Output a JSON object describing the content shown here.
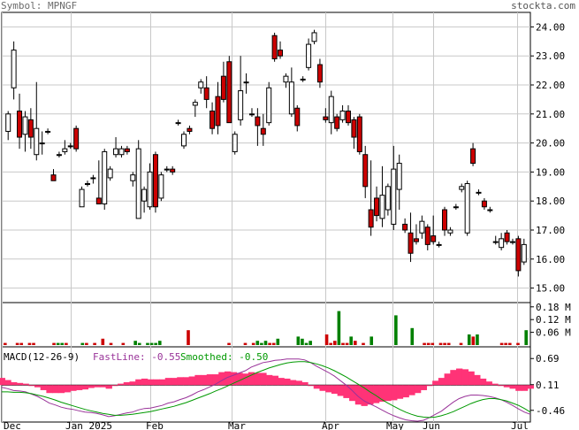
{
  "header": {
    "symbol_label": "Symbol: MPNGF",
    "site": "stockta.com"
  },
  "colors": {
    "up_candle": "#ffffff",
    "down_candle": "#cc0000",
    "candle_outline": "#000000",
    "grid": "#c8c8c8",
    "volume_up": "#008000",
    "volume_down": "#cc0000",
    "macd_hist": "#ff3377",
    "fast_line": "#993399",
    "smoothed_line": "#009900"
  },
  "macd_legend": {
    "label": "MACD(12-26-9)",
    "fast_text": "FastLine: -0.55",
    "smoothed_text": "Smoothed: -0.50"
  },
  "chart_data": [
    {
      "type": "candlestick",
      "panel": "price",
      "y_ticks": [
        "24.00",
        "23.00",
        "22.00",
        "21.00",
        "20.00",
        "19.00",
        "18.00",
        "17.00",
        "16.00",
        "15.00"
      ],
      "ylim": [
        14.5,
        24.5
      ],
      "x_labels": [
        "Dec",
        "Jan 2025",
        "Feb",
        "Mar",
        "Apr",
        "May",
        "Jun",
        "Jul"
      ],
      "grid": true,
      "candles": [
        {
          "o": 20.4,
          "h": 21.1,
          "l": 20.1,
          "c": 21.0
        },
        {
          "o": 21.9,
          "h": 23.5,
          "l": 21.5,
          "c": 23.2
        },
        {
          "o": 21.1,
          "h": 21.7,
          "l": 19.8,
          "c": 20.2
        },
        {
          "o": 20.3,
          "h": 21.1,
          "l": 19.7,
          "c": 20.9
        },
        {
          "o": 20.8,
          "h": 21.2,
          "l": 19.8,
          "c": 20.2
        },
        {
          "o": 19.6,
          "h": 22.1,
          "l": 19.4,
          "c": 20.5
        },
        {
          "o": 20.0,
          "h": 20.4,
          "l": 19.6,
          "c": 20.0
        },
        {
          "o": 20.4,
          "h": 20.5,
          "l": 20.3,
          "c": 20.4
        },
        {
          "o": 18.9,
          "h": 19.1,
          "l": 18.7,
          "c": 18.7
        },
        {
          "o": 19.6,
          "h": 19.7,
          "l": 19.5,
          "c": 19.6
        },
        {
          "o": 19.7,
          "h": 20.1,
          "l": 19.6,
          "c": 19.8
        },
        {
          "o": 19.9,
          "h": 20.0,
          "l": 19.8,
          "c": 19.9
        },
        {
          "o": 20.5,
          "h": 20.6,
          "l": 19.7,
          "c": 19.8
        },
        {
          "o": 17.8,
          "h": 18.5,
          "l": 17.8,
          "c": 18.4
        },
        {
          "o": 18.6,
          "h": 18.7,
          "l": 18.5,
          "c": 18.6
        },
        {
          "o": 18.8,
          "h": 18.9,
          "l": 18.6,
          "c": 18.8
        },
        {
          "o": 18.1,
          "h": 19.4,
          "l": 17.9,
          "c": 17.9
        },
        {
          "o": 17.9,
          "h": 19.8,
          "l": 17.7,
          "c": 19.7
        },
        {
          "o": 18.8,
          "h": 19.2,
          "l": 18.7,
          "c": 19.1
        },
        {
          "o": 19.6,
          "h": 20.2,
          "l": 19.5,
          "c": 19.8
        },
        {
          "o": 19.6,
          "h": 19.9,
          "l": 19.5,
          "c": 19.8
        },
        {
          "o": 19.8,
          "h": 19.9,
          "l": 19.6,
          "c": 19.7
        },
        {
          "o": 18.7,
          "h": 19.0,
          "l": 18.5,
          "c": 18.9
        },
        {
          "o": 17.4,
          "h": 20.1,
          "l": 17.4,
          "c": 19.8
        },
        {
          "o": 18.0,
          "h": 18.5,
          "l": 17.6,
          "c": 18.4
        },
        {
          "o": 17.8,
          "h": 19.3,
          "l": 17.7,
          "c": 19.0
        },
        {
          "o": 19.6,
          "h": 19.7,
          "l": 17.6,
          "c": 17.8
        },
        {
          "o": 18.1,
          "h": 19.0,
          "l": 18.0,
          "c": 18.9
        },
        {
          "o": 19.1,
          "h": 19.2,
          "l": 19.0,
          "c": 19.1
        },
        {
          "o": 19.1,
          "h": 19.2,
          "l": 18.9,
          "c": 19.0
        },
        {
          "o": 20.7,
          "h": 20.8,
          "l": 20.6,
          "c": 20.7
        },
        {
          "o": 19.9,
          "h": 20.4,
          "l": 19.8,
          "c": 20.3
        },
        {
          "o": 20.5,
          "h": 20.6,
          "l": 20.3,
          "c": 20.4
        },
        {
          "o": 21.3,
          "h": 21.5,
          "l": 20.9,
          "c": 21.4
        },
        {
          "o": 21.9,
          "h": 22.2,
          "l": 21.7,
          "c": 22.1
        },
        {
          "o": 21.9,
          "h": 22.3,
          "l": 21.2,
          "c": 21.5
        },
        {
          "o": 21.1,
          "h": 21.4,
          "l": 20.3,
          "c": 20.5
        },
        {
          "o": 21.6,
          "h": 22.1,
          "l": 20.3,
          "c": 20.6
        },
        {
          "o": 22.3,
          "h": 22.8,
          "l": 21.4,
          "c": 21.5
        },
        {
          "o": 22.8,
          "h": 23.0,
          "l": 20.7,
          "c": 20.7
        },
        {
          "o": 19.7,
          "h": 20.4,
          "l": 19.6,
          "c": 20.3
        },
        {
          "o": 20.8,
          "h": 23.0,
          "l": 20.6,
          "c": 21.8
        },
        {
          "o": 22.1,
          "h": 22.4,
          "l": 21.7,
          "c": 22.1
        },
        {
          "o": 21.0,
          "h": 21.2,
          "l": 20.9,
          "c": 21.0
        },
        {
          "o": 20.9,
          "h": 21.2,
          "l": 19.9,
          "c": 20.6
        },
        {
          "o": 20.5,
          "h": 21.0,
          "l": 19.9,
          "c": 20.3
        },
        {
          "o": 20.7,
          "h": 22.1,
          "l": 20.6,
          "c": 21.9
        },
        {
          "o": 23.7,
          "h": 23.8,
          "l": 22.8,
          "c": 22.9
        },
        {
          "o": 23.2,
          "h": 23.5,
          "l": 22.9,
          "c": 23.0
        },
        {
          "o": 22.1,
          "h": 22.4,
          "l": 21.9,
          "c": 22.3
        },
        {
          "o": 21.0,
          "h": 22.6,
          "l": 20.9,
          "c": 22.1
        },
        {
          "o": 21.2,
          "h": 21.3,
          "l": 20.4,
          "c": 20.6
        },
        {
          "o": 22.2,
          "h": 22.3,
          "l": 22.1,
          "c": 22.2
        },
        {
          "o": 22.6,
          "h": 23.6,
          "l": 22.5,
          "c": 23.4
        },
        {
          "o": 23.5,
          "h": 23.9,
          "l": 23.4,
          "c": 23.8
        },
        {
          "o": 22.7,
          "h": 22.9,
          "l": 21.9,
          "c": 22.1
        },
        {
          "o": 20.9,
          "h": 21.2,
          "l": 20.7,
          "c": 20.8
        },
        {
          "o": 20.7,
          "h": 21.8,
          "l": 20.3,
          "c": 21.6
        },
        {
          "o": 20.9,
          "h": 21.0,
          "l": 20.4,
          "c": 20.5
        },
        {
          "o": 20.8,
          "h": 21.3,
          "l": 20.7,
          "c": 21.1
        },
        {
          "o": 21.1,
          "h": 21.3,
          "l": 20.6,
          "c": 20.7
        },
        {
          "o": 20.8,
          "h": 20.9,
          "l": 19.8,
          "c": 20.2
        },
        {
          "o": 20.9,
          "h": 21.0,
          "l": 19.6,
          "c": 19.7
        },
        {
          "o": 19.6,
          "h": 19.9,
          "l": 18.1,
          "c": 18.5
        },
        {
          "o": 17.7,
          "h": 19.4,
          "l": 16.8,
          "c": 17.1
        },
        {
          "o": 18.1,
          "h": 18.5,
          "l": 17.3,
          "c": 17.5
        },
        {
          "o": 17.4,
          "h": 19.2,
          "l": 17.1,
          "c": 18.2
        },
        {
          "o": 17.7,
          "h": 18.6,
          "l": 17.5,
          "c": 18.5
        },
        {
          "o": 17.2,
          "h": 19.9,
          "l": 17.0,
          "c": 19.1
        },
        {
          "o": 18.4,
          "h": 19.6,
          "l": 17.7,
          "c": 19.3
        },
        {
          "o": 17.2,
          "h": 17.4,
          "l": 16.9,
          "c": 17.0
        },
        {
          "o": 16.9,
          "h": 17.6,
          "l": 15.9,
          "c": 16.2
        },
        {
          "o": 16.7,
          "h": 17.2,
          "l": 16.5,
          "c": 16.6
        },
        {
          "o": 16.9,
          "h": 17.5,
          "l": 16.7,
          "c": 17.3
        },
        {
          "o": 17.1,
          "h": 17.2,
          "l": 16.3,
          "c": 16.5
        },
        {
          "o": 16.8,
          "h": 17.5,
          "l": 16.5,
          "c": 16.6
        },
        {
          "o": 16.5,
          "h": 16.6,
          "l": 16.4,
          "c": 16.5
        },
        {
          "o": 17.7,
          "h": 17.8,
          "l": 16.8,
          "c": 17.0
        },
        {
          "o": 16.9,
          "h": 17.1,
          "l": 16.8,
          "c": 17.0
        },
        {
          "o": 17.8,
          "h": 17.9,
          "l": 17.7,
          "c": 17.8
        },
        {
          "o": 18.4,
          "h": 18.6,
          "l": 18.3,
          "c": 18.5
        },
        {
          "o": 16.9,
          "h": 18.7,
          "l": 16.8,
          "c": 18.6
        },
        {
          "o": 19.8,
          "h": 20.0,
          "l": 19.2,
          "c": 19.3
        },
        {
          "o": 18.3,
          "h": 18.4,
          "l": 18.2,
          "c": 18.3
        },
        {
          "o": 18.0,
          "h": 18.1,
          "l": 17.7,
          "c": 17.8
        },
        {
          "o": 17.7,
          "h": 17.8,
          "l": 17.6,
          "c": 17.7
        },
        {
          "o": 16.6,
          "h": 16.8,
          "l": 16.5,
          "c": 16.6
        },
        {
          "o": 16.4,
          "h": 16.9,
          "l": 16.3,
          "c": 16.7
        },
        {
          "o": 16.9,
          "h": 17.0,
          "l": 16.5,
          "c": 16.6
        },
        {
          "o": 16.6,
          "h": 16.7,
          "l": 16.5,
          "c": 16.6
        },
        {
          "o": 16.7,
          "h": 16.8,
          "l": 15.4,
          "c": 15.6
        },
        {
          "o": 15.9,
          "h": 16.7,
          "l": 15.8,
          "c": 16.5
        }
      ]
    },
    {
      "type": "bar",
      "panel": "volume",
      "y_ticks": [
        "0.18 M",
        "0.12 M",
        "0.06 M"
      ],
      "ylim": [
        0,
        0.2
      ],
      "values": [
        0.01,
        0,
        0,
        0.01,
        0.01,
        0,
        0.01,
        0.01,
        0,
        0,
        0,
        0,
        0.01,
        0.01,
        0.01,
        0.01,
        0,
        0,
        0,
        0.01,
        0.01,
        0,
        0.01,
        0,
        0.03,
        0,
        0.01,
        0,
        0,
        0.01,
        0,
        0,
        0.02,
        0.01,
        0,
        0.01,
        0.01,
        0.01,
        0.02,
        0,
        0,
        0,
        0,
        0,
        0,
        0.07,
        0,
        0,
        0,
        0,
        0,
        0,
        0,
        0,
        0,
        0.01,
        0,
        0,
        0,
        0.01,
        0,
        0.01,
        0.02,
        0.01,
        0.02,
        0.01,
        0.01,
        0.03,
        0,
        0,
        0,
        0,
        0.04,
        0.03,
        0.01,
        0.02,
        0,
        0,
        0,
        0.05,
        0.01,
        0.02,
        0.16,
        0.01,
        0.01,
        0.04,
        0.02,
        0,
        0.01,
        0,
        0.04,
        0,
        0,
        0,
        0,
        0,
        0.14,
        0,
        0,
        0,
        0.08,
        0,
        0,
        0.01,
        0.01,
        0.01,
        0,
        0.01,
        0.01,
        0.01,
        0,
        0,
        0.01,
        0,
        0.05,
        0.04,
        0.05,
        0,
        0,
        0,
        0,
        0,
        0.01,
        0.01,
        0.01,
        0,
        0.01,
        0,
        0.07
      ],
      "colors_up": [
        false,
        false,
        false,
        false,
        false,
        false,
        false,
        false,
        false,
        false,
        false,
        false,
        false,
        true,
        true,
        false,
        false,
        false,
        false,
        true,
        false,
        false,
        false,
        false,
        false,
        false,
        false,
        false,
        false,
        false,
        false,
        false,
        true,
        true,
        false,
        true,
        true,
        true,
        true,
        false,
        false,
        false,
        false,
        false,
        false,
        false,
        false,
        false,
        false,
        false,
        false,
        false,
        false,
        false,
        false,
        false,
        false,
        false,
        false,
        false,
        false,
        false,
        true,
        true,
        true,
        false,
        false,
        true,
        false,
        false,
        false,
        false,
        true,
        true,
        true,
        true,
        false,
        false,
        false,
        false,
        false,
        false,
        true,
        false,
        false,
        true,
        false,
        false,
        false,
        false,
        true,
        false,
        false,
        false,
        false,
        false,
        true,
        false,
        false,
        false,
        true,
        false,
        false,
        false,
        false,
        false,
        false,
        false,
        false,
        false,
        false,
        false,
        false,
        false,
        true,
        false,
        true,
        false,
        false,
        false,
        false,
        false,
        false,
        false,
        false,
        false,
        false,
        false,
        true
      ]
    },
    {
      "type": "line",
      "panel": "macd",
      "y_ticks": [
        "0.69",
        "0.11",
        "-0.46"
      ],
      "ylim": [
        -0.72,
        0.95
      ],
      "fast": [
        0.05,
        0.02,
        -0.02,
        -0.03,
        -0.05,
        -0.1,
        -0.15,
        -0.22,
        -0.3,
        -0.34,
        -0.39,
        -0.42,
        -0.44,
        -0.47,
        -0.5,
        -0.51,
        -0.53,
        -0.56,
        -0.6,
        -0.58,
        -0.55,
        -0.52,
        -0.5,
        -0.45,
        -0.42,
        -0.41,
        -0.38,
        -0.35,
        -0.3,
        -0.27,
        -0.22,
        -0.18,
        -0.12,
        -0.05,
        0.0,
        0.06,
        0.12,
        0.2,
        0.27,
        0.32,
        0.37,
        0.42,
        0.5,
        0.55,
        0.6,
        0.62,
        0.65,
        0.66,
        0.68,
        0.68,
        0.68,
        0.66,
        0.6,
        0.52,
        0.45,
        0.38,
        0.3,
        0.2,
        0.1,
        -0.02,
        -0.15,
        -0.25,
        -0.32,
        -0.38,
        -0.45,
        -0.52,
        -0.58,
        -0.63,
        -0.67,
        -0.69,
        -0.7,
        -0.68,
        -0.62,
        -0.55,
        -0.48,
        -0.38,
        -0.28,
        -0.2,
        -0.15,
        -0.12,
        -0.12,
        -0.13,
        -0.15,
        -0.18,
        -0.22,
        -0.28,
        -0.35,
        -0.43,
        -0.5,
        -0.55
      ],
      "smoothed": [
        -0.05,
        -0.05,
        -0.06,
        -0.06,
        -0.07,
        -0.09,
        -0.12,
        -0.15,
        -0.19,
        -0.23,
        -0.28,
        -0.32,
        -0.36,
        -0.4,
        -0.44,
        -0.47,
        -0.5,
        -0.53,
        -0.55,
        -0.57,
        -0.57,
        -0.56,
        -0.55,
        -0.53,
        -0.51,
        -0.49,
        -0.46,
        -0.43,
        -0.4,
        -0.37,
        -0.33,
        -0.29,
        -0.24,
        -0.19,
        -0.14,
        -0.09,
        -0.03,
        0.02,
        0.08,
        0.14,
        0.2,
        0.26,
        0.32,
        0.38,
        0.43,
        0.48,
        0.52,
        0.56,
        0.59,
        0.61,
        0.62,
        0.62,
        0.6,
        0.57,
        0.53,
        0.48,
        0.42,
        0.35,
        0.28,
        0.2,
        0.12,
        0.04,
        -0.05,
        -0.13,
        -0.22,
        -0.3,
        -0.37,
        -0.44,
        -0.5,
        -0.55,
        -0.59,
        -0.61,
        -0.62,
        -0.61,
        -0.58,
        -0.54,
        -0.49,
        -0.43,
        -0.37,
        -0.31,
        -0.26,
        -0.22,
        -0.2,
        -0.2,
        -0.22,
        -0.25,
        -0.3,
        -0.35,
        -0.42,
        -0.5
      ]
    }
  ]
}
